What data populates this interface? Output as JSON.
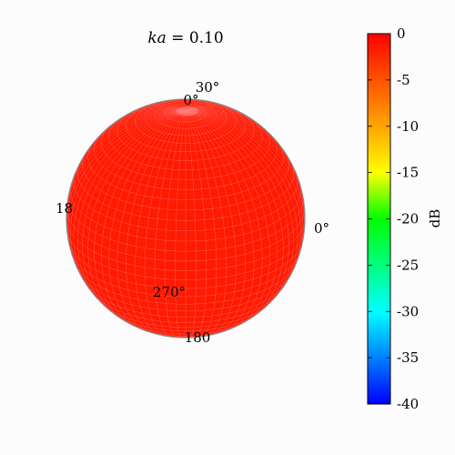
{
  "chart_data": {
    "type": "heatmap",
    "plot_kind": "3d-sphere-radiation-pattern",
    "title": "ka = 0.10",
    "title_parts": {
      "symbol": "ka",
      "equals": " = ",
      "value": "0.10"
    },
    "surface_uniform_value_db": 0,
    "angle_labels": [
      "0°",
      "30°",
      "18",
      "0°",
      "270°",
      "180"
    ],
    "colorbar": {
      "label": "dB",
      "range": [
        -40,
        0
      ],
      "ticks": [
        0,
        -5,
        -10,
        -15,
        -20,
        -25,
        -30,
        -35,
        -40
      ],
      "tick_labels": [
        "0",
        "-5",
        "-10",
        "-15",
        "-20",
        "-25",
        "-30",
        "-35",
        "-40"
      ],
      "colormap": [
        "#ff0000",
        "#ffa500",
        "#ffff00",
        "#00ff00",
        "#00ffff",
        "#0000ff"
      ]
    },
    "colors": {
      "surface": "#ff1a00",
      "mesh": "#ff7070",
      "outline": "#888888"
    }
  }
}
